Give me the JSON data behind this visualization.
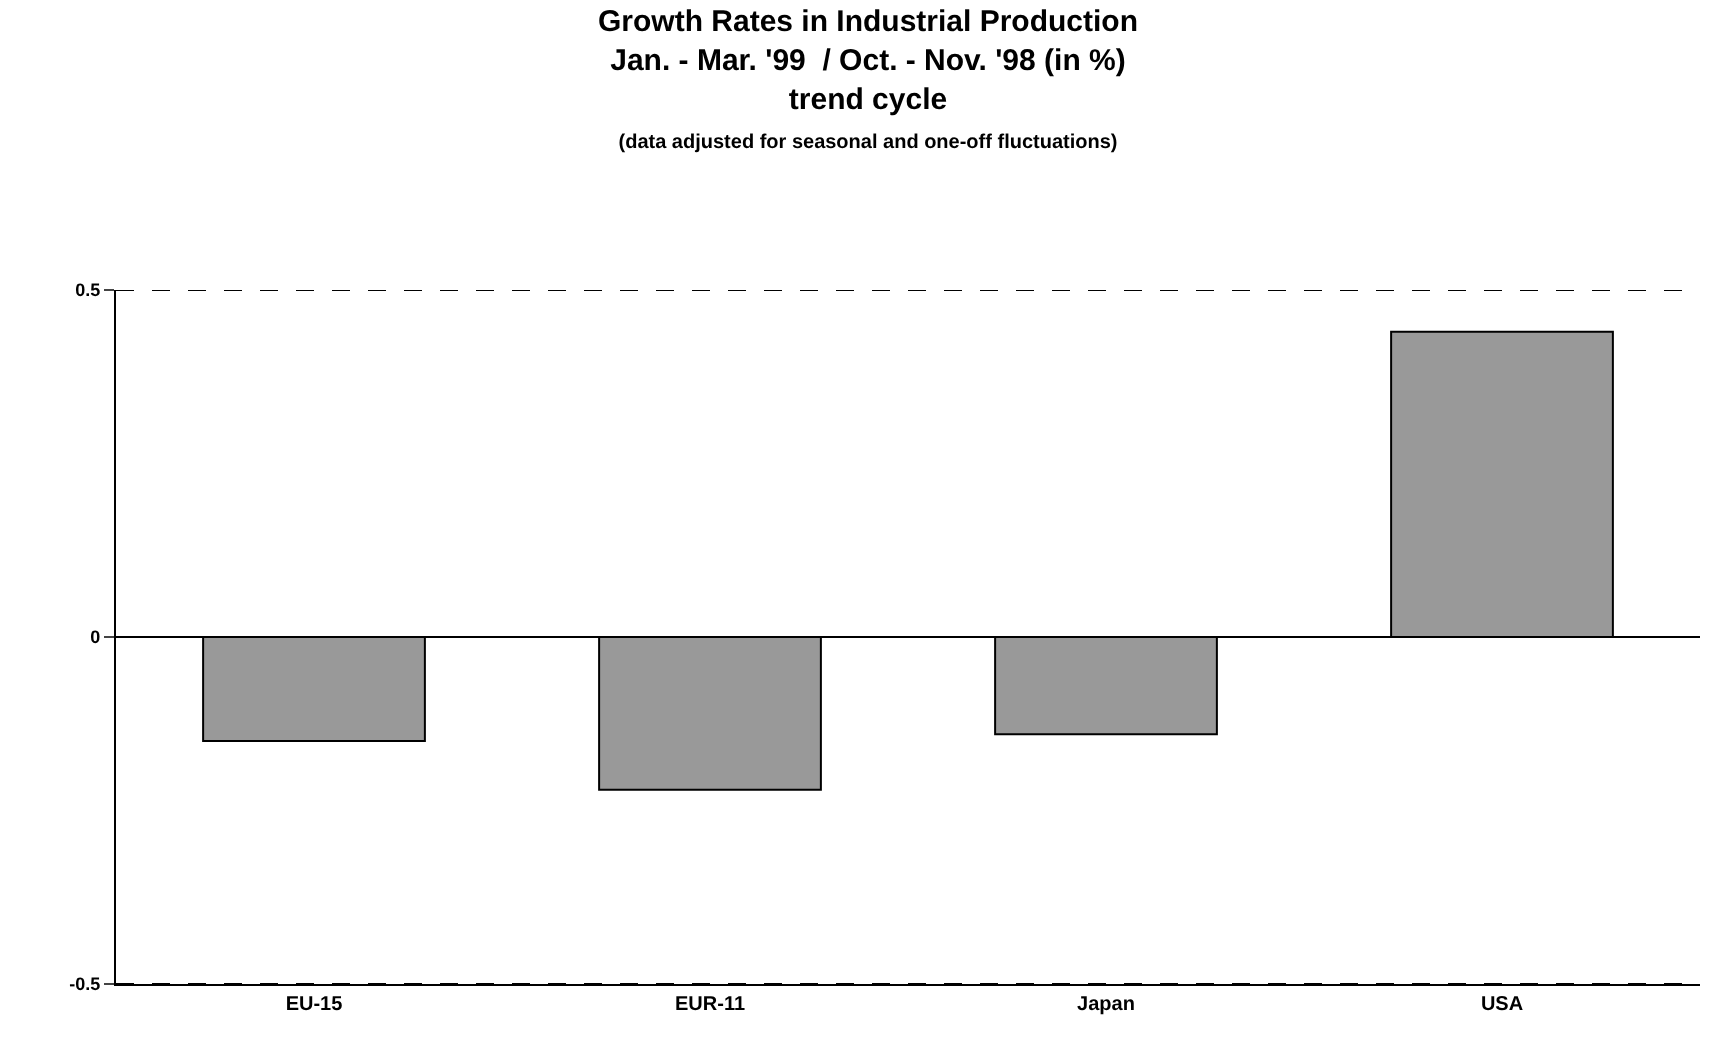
{
  "chart_data": {
    "type": "bar",
    "title": "Growth Rates in Industrial Production\nJan. - Mar. '99  / Oct. - Nov. '98 (in %)\ntrend cycle",
    "subtitle": "(data adjusted for seasonal and one-off fluctuations)",
    "categories": [
      "EU-15",
      "EUR-11",
      "Japan",
      "USA"
    ],
    "values": [
      -0.15,
      -0.22,
      -0.14,
      0.44
    ],
    "color": "#999999",
    "ylim": [
      -0.5,
      0.5
    ],
    "yticks": [
      -0.5,
      0,
      0.5
    ],
    "grid": "y"
  }
}
